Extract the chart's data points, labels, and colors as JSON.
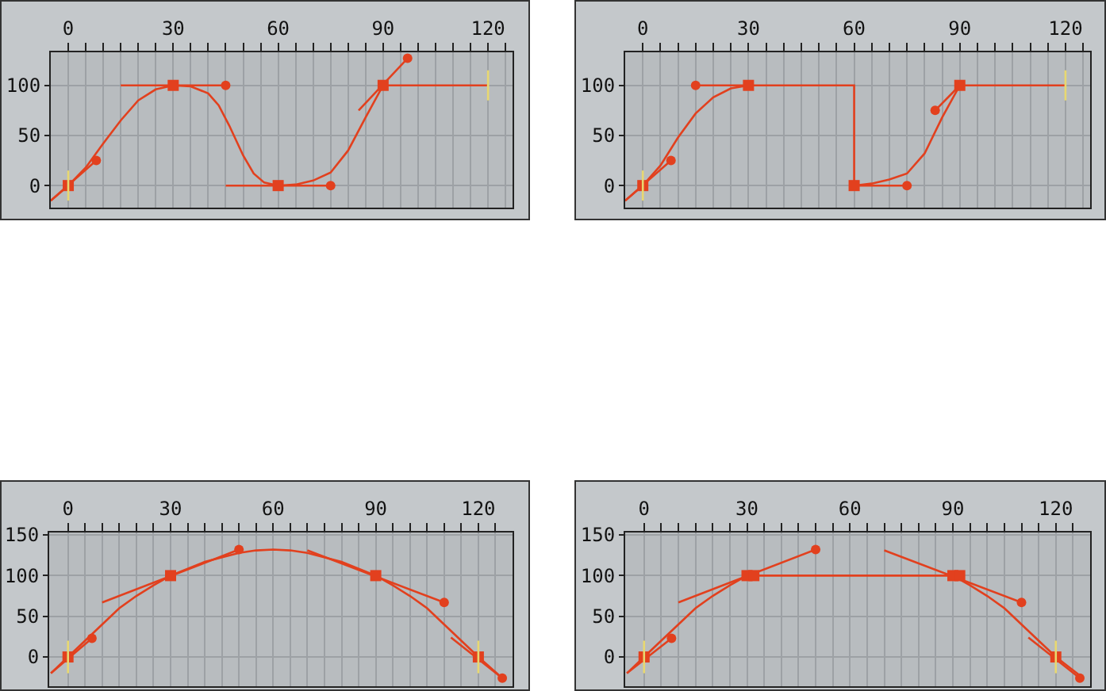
{
  "chart_data": [
    {
      "type": "line",
      "xlim": [
        -5,
        127
      ],
      "ylim": [
        -22,
        133
      ],
      "xticks": [
        0,
        {
          "value": 5,
          "label": null
        },
        {
          "value": 10,
          "label": null
        },
        {
          "value": 15,
          "label": null
        },
        {
          "value": 20,
          "label": null
        },
        {
          "value": 25,
          "label": null
        },
        30,
        {
          "value": 35,
          "label": null
        },
        {
          "value": 40,
          "label": null
        },
        {
          "value": 45,
          "label": null
        },
        {
          "value": 50,
          "label": null
        },
        {
          "value": 55,
          "label": null
        },
        60,
        {
          "value": 65,
          "label": null
        },
        {
          "value": 70,
          "label": null
        },
        {
          "value": 75,
          "label": null
        },
        {
          "value": 80,
          "label": null
        },
        {
          "value": 85,
          "label": null
        },
        90,
        {
          "value": 95,
          "label": null
        },
        {
          "value": 100,
          "label": null
        },
        {
          "value": 105,
          "label": null
        },
        {
          "value": 110,
          "label": null
        },
        {
          "value": 115,
          "label": null
        },
        120,
        {
          "value": 125,
          "label": null
        }
      ],
      "yticks": [
        0,
        50,
        100
      ],
      "grid": true,
      "series": [
        {
          "type": "line",
          "marker": "none",
          "color": "#e2401e",
          "x": [
            -5,
            0,
            5,
            10,
            15,
            20,
            25,
            30,
            35,
            40,
            43,
            46,
            50,
            53,
            56,
            60,
            65,
            70,
            75,
            80,
            85,
            90,
            120
          ],
          "values": [
            -15,
            0,
            18,
            42,
            65,
            85,
            96,
            100,
            99,
            92,
            80,
            60,
            30,
            12,
            3,
            0,
            1,
            5,
            13,
            35,
            68,
            100,
            100
          ]
        },
        {
          "type": "line",
          "marker": "none",
          "color": "#e2401e",
          "x": [
            -5,
            8,
            null,
            15,
            45,
            null,
            45,
            75,
            null,
            83,
            97
          ],
          "values": [
            -15,
            25,
            null,
            100,
            100,
            null,
            0,
            0,
            null,
            75,
            127
          ]
        },
        {
          "type": "scatter",
          "marker": "circle",
          "color": "#e2401e",
          "x": [
            8,
            45,
            75,
            97
          ],
          "values": [
            25,
            100,
            0,
            127
          ]
        },
        {
          "type": "scatter",
          "marker": "square",
          "color": "#e2401e",
          "x": [
            0,
            30,
            60,
            90
          ],
          "values": [
            0,
            100,
            0,
            100
          ]
        },
        {
          "type": "line",
          "marker": "none",
          "color": "#e8d870",
          "x": [
            0,
            0,
            null,
            120,
            120
          ],
          "values": [
            -15,
            15,
            null,
            85,
            115
          ]
        }
      ]
    },
    {
      "type": "line",
      "xlim": [
        -5,
        127
      ],
      "ylim": [
        -22,
        133
      ],
      "xticks": [
        0,
        {
          "value": 5,
          "label": null
        },
        {
          "value": 10,
          "label": null
        },
        {
          "value": 15,
          "label": null
        },
        {
          "value": 20,
          "label": null
        },
        {
          "value": 25,
          "label": null
        },
        30,
        {
          "value": 35,
          "label": null
        },
        {
          "value": 40,
          "label": null
        },
        {
          "value": 45,
          "label": null
        },
        {
          "value": 50,
          "label": null
        },
        {
          "value": 55,
          "label": null
        },
        60,
        {
          "value": 65,
          "label": null
        },
        {
          "value": 70,
          "label": null
        },
        {
          "value": 75,
          "label": null
        },
        {
          "value": 80,
          "label": null
        },
        {
          "value": 85,
          "label": null
        },
        90,
        {
          "value": 95,
          "label": null
        },
        {
          "value": 100,
          "label": null
        },
        {
          "value": 105,
          "label": null
        },
        {
          "value": 110,
          "label": null
        },
        {
          "value": 115,
          "label": null
        },
        120,
        {
          "value": 125,
          "label": null
        }
      ],
      "yticks": [
        0,
        50,
        100
      ],
      "grid": true,
      "series": [
        {
          "type": "line",
          "marker": "none",
          "color": "#e2401e",
          "x": [
            -5,
            0,
            5,
            10,
            15,
            20,
            25,
            30,
            60,
            60,
            65,
            70,
            75,
            80,
            85,
            90,
            120
          ],
          "values": [
            -15,
            0,
            20,
            48,
            72,
            88,
            97,
            100,
            100,
            0,
            2,
            6,
            12,
            32,
            68,
            100,
            100
          ]
        },
        {
          "type": "line",
          "marker": "none",
          "color": "#e2401e",
          "x": [
            -5,
            8,
            null,
            15,
            30,
            null,
            60,
            75,
            null,
            83,
            90
          ],
          "values": [
            -15,
            25,
            null,
            100,
            100,
            null,
            0,
            0,
            null,
            75,
            100
          ]
        },
        {
          "type": "scatter",
          "marker": "circle",
          "color": "#e2401e",
          "x": [
            8,
            15,
            75,
            83
          ],
          "values": [
            25,
            100,
            0,
            75
          ]
        },
        {
          "type": "scatter",
          "marker": "square",
          "color": "#e2401e",
          "x": [
            0,
            30,
            60,
            90
          ],
          "values": [
            0,
            100,
            0,
            100
          ]
        },
        {
          "type": "line",
          "marker": "none",
          "color": "#e8d870",
          "x": [
            0,
            0,
            null,
            120,
            120
          ],
          "values": [
            -15,
            15,
            null,
            85,
            115
          ]
        }
      ]
    },
    {
      "type": "line",
      "xlim": [
        -5.5,
        130
      ],
      "ylim": [
        -36,
        153
      ],
      "xticks": [
        0,
        {
          "value": 5,
          "label": null
        },
        {
          "value": 10,
          "label": null
        },
        {
          "value": 15,
          "label": null
        },
        {
          "value": 20,
          "label": null
        },
        {
          "value": 25,
          "label": null
        },
        30,
        {
          "value": 35,
          "label": null
        },
        {
          "value": 40,
          "label": null
        },
        {
          "value": 45,
          "label": null
        },
        {
          "value": 50,
          "label": null
        },
        {
          "value": 55,
          "label": null
        },
        60,
        {
          "value": 65,
          "label": null
        },
        {
          "value": 70,
          "label": null
        },
        {
          "value": 75,
          "label": null
        },
        {
          "value": 80,
          "label": null
        },
        {
          "value": 85,
          "label": null
        },
        90,
        {
          "value": 95,
          "label": null
        },
        {
          "value": 100,
          "label": null
        },
        {
          "value": 105,
          "label": null
        },
        {
          "value": 110,
          "label": null
        },
        {
          "value": 115,
          "label": null
        },
        120,
        {
          "value": 125,
          "label": null
        }
      ],
      "yticks": [
        0,
        50,
        100,
        150
      ],
      "grid": true,
      "series": [
        {
          "type": "line",
          "marker": "none",
          "color": "#e2401e",
          "x": [
            -5,
            0,
            5,
            10,
            15,
            20,
            25,
            30,
            40,
            50,
            55,
            60,
            65,
            70,
            80,
            90,
            95,
            100,
            105,
            110,
            115,
            120,
            127
          ],
          "values": [
            -20,
            0,
            20,
            40,
            60,
            75,
            88,
            100,
            117,
            128,
            131,
            132,
            131,
            128,
            117,
            100,
            88,
            75,
            60,
            40,
            20,
            0,
            -26
          ]
        },
        {
          "type": "line",
          "marker": "none",
          "color": "#e2401e",
          "x": [
            -5,
            7,
            null,
            10,
            50,
            null,
            70,
            110,
            null,
            112,
            127
          ],
          "values": [
            -20,
            23,
            null,
            67,
            132,
            null,
            131,
            67,
            null,
            24,
            -26
          ]
        },
        {
          "type": "scatter",
          "marker": "circle",
          "color": "#e2401e",
          "x": [
            7,
            50,
            110,
            127
          ],
          "values": [
            23,
            132,
            67,
            -26
          ]
        },
        {
          "type": "scatter",
          "marker": "square",
          "color": "#e2401e",
          "x": [
            0,
            30,
            90,
            120
          ],
          "values": [
            0,
            100,
            100,
            0
          ]
        },
        {
          "type": "line",
          "marker": "none",
          "color": "#e8d870",
          "x": [
            0,
            0,
            null,
            120,
            120
          ],
          "values": [
            -20,
            20,
            null,
            -20,
            20
          ]
        }
      ]
    },
    {
      "type": "line",
      "xlim": [
        -5.5,
        130
      ],
      "ylim": [
        -36,
        153
      ],
      "xticks": [
        0,
        {
          "value": 5,
          "label": null
        },
        {
          "value": 10,
          "label": null
        },
        {
          "value": 15,
          "label": null
        },
        {
          "value": 20,
          "label": null
        },
        {
          "value": 25,
          "label": null
        },
        30,
        {
          "value": 35,
          "label": null
        },
        {
          "value": 40,
          "label": null
        },
        {
          "value": 45,
          "label": null
        },
        {
          "value": 50,
          "label": null
        },
        {
          "value": 55,
          "label": null
        },
        60,
        {
          "value": 65,
          "label": null
        },
        {
          "value": 70,
          "label": null
        },
        {
          "value": 75,
          "label": null
        },
        {
          "value": 80,
          "label": null
        },
        {
          "value": 85,
          "label": null
        },
        90,
        {
          "value": 95,
          "label": null
        },
        {
          "value": 100,
          "label": null
        },
        {
          "value": 105,
          "label": null
        },
        {
          "value": 110,
          "label": null
        },
        {
          "value": 115,
          "label": null
        },
        120,
        {
          "value": 125,
          "label": null
        }
      ],
      "yticks": [
        0,
        50,
        100,
        150
      ],
      "grid": true,
      "series": [
        {
          "type": "line",
          "marker": "none",
          "color": "#e2401e",
          "x": [
            -5,
            0,
            5,
            10,
            15,
            20,
            25,
            30,
            90,
            95,
            100,
            105,
            110,
            115,
            120,
            128
          ],
          "values": [
            -20,
            0,
            20,
            40,
            60,
            75,
            88,
            100,
            100,
            88,
            75,
            60,
            40,
            20,
            0,
            -26
          ]
        },
        {
          "type": "line",
          "marker": "none",
          "color": "#e2401e",
          "x": [
            -5,
            8,
            null,
            10,
            50,
            null,
            70,
            110,
            null,
            112,
            127
          ],
          "values": [
            -20,
            23,
            null,
            67,
            132,
            null,
            131,
            67,
            null,
            24,
            -26
          ]
        },
        {
          "type": "scatter",
          "marker": "circle",
          "color": "#e2401e",
          "x": [
            8,
            50,
            110,
            127
          ],
          "values": [
            23,
            132,
            67,
            -26
          ]
        },
        {
          "type": "scatter",
          "marker": "square",
          "color": "#e2401e",
          "x": [
            0,
            30,
            32,
            90,
            92,
            120
          ],
          "values": [
            0,
            100,
            100,
            100,
            100,
            0
          ]
        },
        {
          "type": "line",
          "marker": "none",
          "color": "#e8d870",
          "x": [
            0,
            0,
            null,
            120,
            120
          ],
          "values": [
            -20,
            20,
            null,
            -20,
            20
          ]
        }
      ]
    }
  ]
}
